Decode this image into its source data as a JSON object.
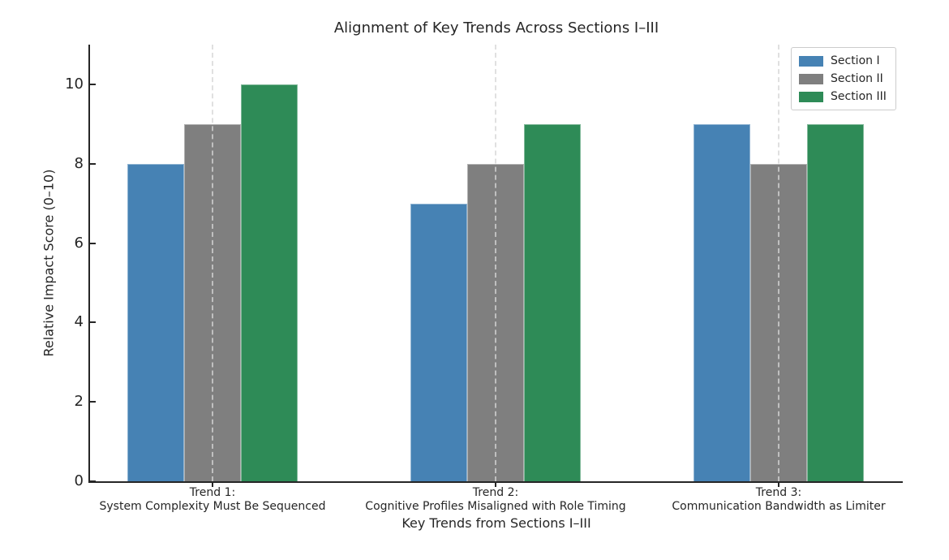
{
  "chart_data": {
    "type": "bar",
    "title": "Alignment of Key Trends Across Sections I–III",
    "xlabel": "Key Trends from Sections I–III",
    "ylabel": "Relative Impact Score (0–10)",
    "ylim": [
      0,
      11
    ],
    "yticks": [
      0,
      2,
      4,
      6,
      8,
      10
    ],
    "grid": "vertical dashed lines at category centers",
    "legend_position": "upper right",
    "categories": [
      [
        "Trend 1:",
        "System Complexity Must Be Sequenced"
      ],
      [
        "Trend 2:",
        "Cognitive Profiles Misaligned with Role Timing"
      ],
      [
        "Trend 3:",
        "Communication Bandwidth as Limiter"
      ]
    ],
    "series": [
      {
        "name": "Section I",
        "color": "#4682B4",
        "values": [
          8,
          7,
          9
        ]
      },
      {
        "name": "Section II",
        "color": "#7F7F7F",
        "values": [
          9,
          8,
          8
        ]
      },
      {
        "name": "Section III",
        "color": "#2E8B57",
        "values": [
          10,
          9,
          9
        ]
      }
    ]
  }
}
